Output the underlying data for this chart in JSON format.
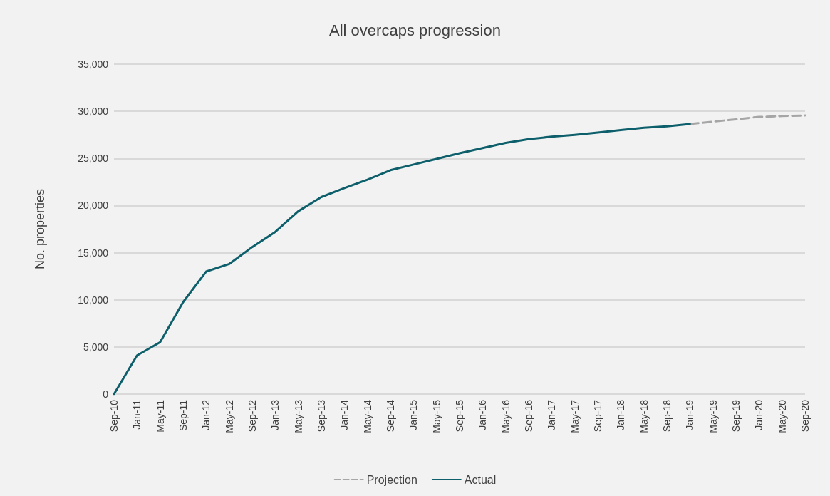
{
  "chart_data": {
    "type": "line",
    "title": "All overcaps progression",
    "ylabel": "No. properties",
    "categories": [
      "Sep-10",
      "Jan-11",
      "May-11",
      "Sep-11",
      "Jan-12",
      "May-12",
      "Sep-12",
      "Jan-13",
      "May-13",
      "Sep-13",
      "Jan-14",
      "May-14",
      "Sep-14",
      "Jan-15",
      "May-15",
      "Sep-15",
      "Jan-16",
      "May-16",
      "Sep-16",
      "Jan-17",
      "May-17",
      "Sep-17",
      "Jan-18",
      "May-18",
      "Sep-18",
      "Jan-19",
      "May-19",
      "Sep-19",
      "Jan-20",
      "May-20",
      "Sep-20"
    ],
    "series": [
      {
        "name": "Projection",
        "color": "#a6a6a6",
        "line_style": "dashed",
        "values": [
          null,
          null,
          null,
          null,
          null,
          null,
          null,
          null,
          null,
          null,
          null,
          null,
          null,
          null,
          null,
          null,
          null,
          null,
          null,
          null,
          null,
          null,
          null,
          null,
          null,
          28650,
          28900,
          29150,
          29400,
          29500,
          29550
        ]
      },
      {
        "name": "Actual",
        "color": "#0d5f6b",
        "line_style": "solid",
        "values": [
          0,
          4100,
          5500,
          9750,
          13000,
          13800,
          15600,
          17200,
          19400,
          20900,
          21850,
          22750,
          23750,
          24350,
          24950,
          25550,
          26100,
          26650,
          27050,
          27300,
          27500,
          27750,
          28000,
          28250,
          28400,
          28650,
          null,
          null,
          null,
          null,
          null
        ]
      }
    ],
    "ylim": [
      0,
      35000
    ],
    "yticks": [
      0,
      {
        "value": 5000,
        "label": "5,000"
      },
      {
        "value": 10000,
        "label": "10,000"
      },
      {
        "value": 15000,
        "label": "15,000"
      },
      {
        "value": 20000,
        "label": "20,000"
      },
      {
        "value": 25000,
        "label": "25,000"
      },
      {
        "value": 30000,
        "label": "30,000"
      },
      {
        "value": 35000,
        "label": "35,000"
      }
    ],
    "grid": "y",
    "legend": "bottom",
    "marker": "none"
  }
}
